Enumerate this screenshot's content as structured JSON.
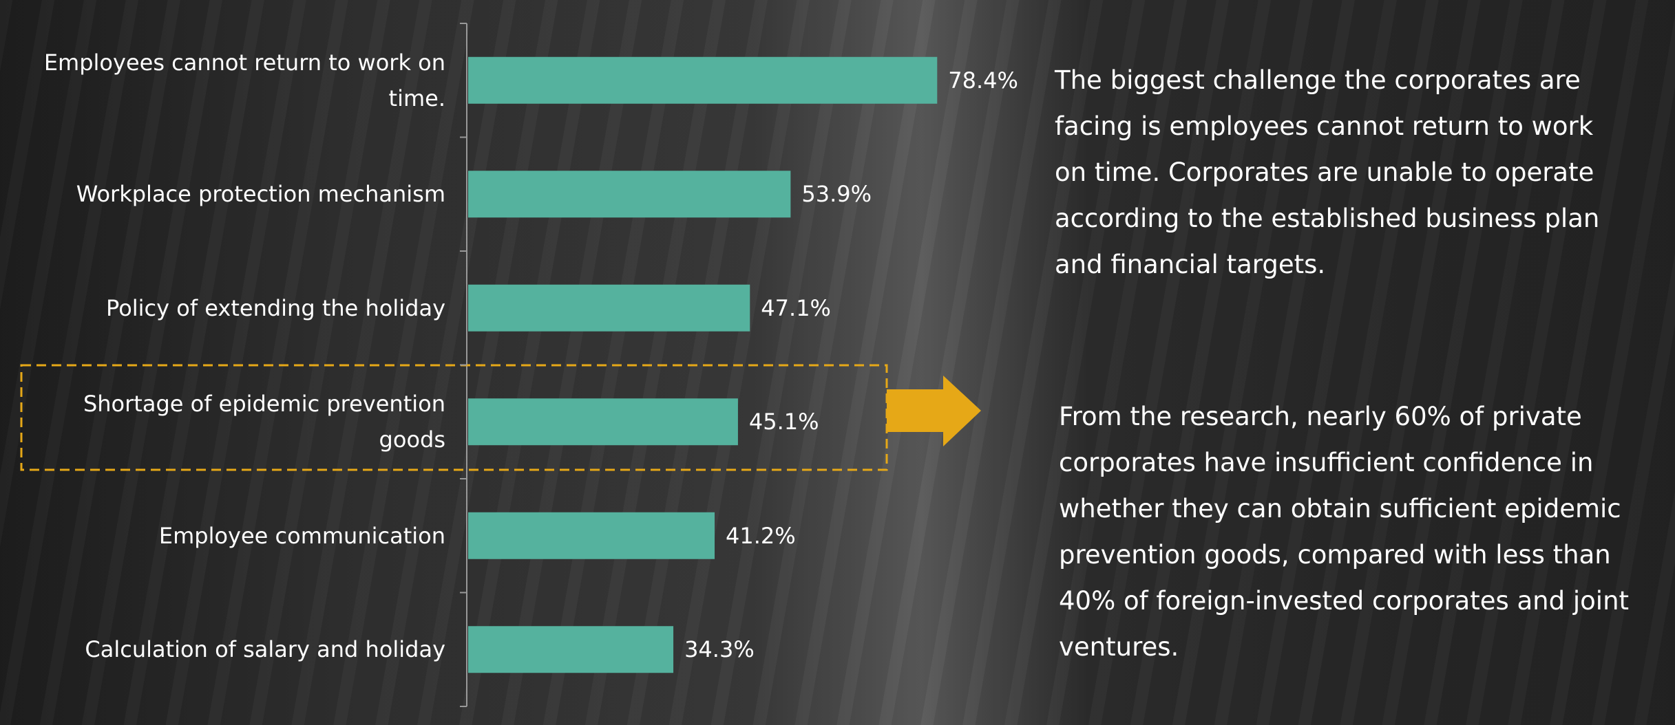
{
  "chart_data": {
    "type": "bar",
    "orientation": "horizontal",
    "categories": [
      "Employees cannot return to work on time.",
      "Workplace protection mechanism",
      "Policy of extending the holiday",
      "Shortage of epidemic prevention goods",
      "Employee communication",
      "Calculation of salary and holiday"
    ],
    "values": [
      78.4,
      53.9,
      47.1,
      45.1,
      41.2,
      34.3
    ],
    "value_labels": [
      "78.4%",
      "53.9%",
      "47.1%",
      "45.1%",
      "41.2%",
      "34.3%"
    ],
    "color": "#55b29e",
    "xlim": [
      0,
      100
    ],
    "annotations": [
      "The biggest challenge the corporates are facing is employees cannot return to work on time. Corporates are unable to operate according to the established business plan and financial targets.",
      "From the research, nearly 60% of private corporates have insufficient confidence in whether they can obtain sufficient epidemic prevention goods, compared with less than 40% of foreign-invested corporates and joint ventures."
    ]
  }
}
